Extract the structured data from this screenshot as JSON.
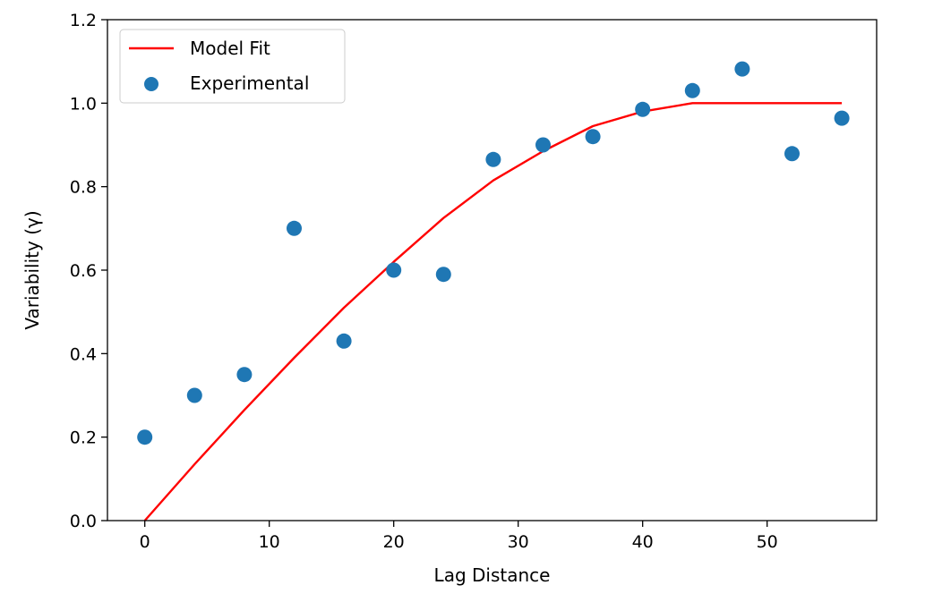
{
  "chart_data": {
    "type": "scatter",
    "xlabel": "Lag Distance",
    "ylabel": "Variability (γ)",
    "xlim": [
      -3,
      58.8
    ],
    "ylim": [
      0,
      1.2
    ],
    "xticks": [
      0,
      10,
      20,
      30,
      40,
      50
    ],
    "yticks": [
      0.0,
      0.2,
      0.4,
      0.6,
      0.8,
      1.0,
      1.2
    ],
    "xtick_labels": [
      "0",
      "10",
      "20",
      "30",
      "40",
      "50"
    ],
    "ytick_labels": [
      "0.0",
      "0.2",
      "0.4",
      "0.6",
      "0.8",
      "1.0",
      "1.2"
    ],
    "grid": false,
    "legend_position": "top-left",
    "series": [
      {
        "name": "Model Fit",
        "kind": "line",
        "color": "#ff0000",
        "x": [
          0,
          4,
          8,
          12,
          16,
          20,
          24,
          28,
          32,
          36,
          40,
          44,
          48,
          52,
          56
        ],
        "y": [
          0.0,
          0.135,
          0.265,
          0.39,
          0.51,
          0.62,
          0.725,
          0.815,
          0.885,
          0.945,
          0.98,
          1.0,
          1.0,
          1.0,
          1.0
        ]
      },
      {
        "name": "Experimental",
        "kind": "scatter",
        "color": "#1f77b4",
        "x": [
          0,
          4,
          8,
          12,
          16,
          20,
          24,
          28,
          32,
          36,
          40,
          44,
          48,
          52,
          56
        ],
        "y": [
          0.2,
          0.3,
          0.35,
          0.7,
          0.43,
          0.6,
          0.59,
          0.865,
          0.9,
          0.92,
          0.985,
          1.03,
          1.082,
          0.879,
          0.964
        ]
      }
    ]
  }
}
